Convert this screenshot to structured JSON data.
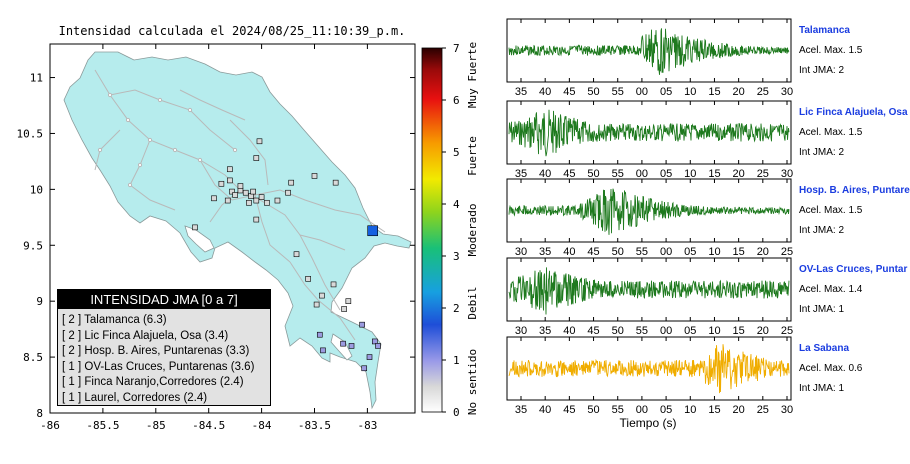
{
  "map": {
    "title": "Intensidad calculada el 2024/08/25_11:10:39_p.m.",
    "x_ticks": [
      "-86",
      "-85.5",
      "-85",
      "-84.5",
      "-84",
      "-83.5",
      "-83"
    ],
    "y_ticks": [
      "11",
      "10.5",
      "10",
      "9.5",
      "9",
      "8.5",
      "8"
    ],
    "xlim": [
      -86,
      -82.55
    ],
    "ylim": [
      8,
      11.3
    ],
    "land_color": "#b6eced",
    "epicenter": {
      "lon": -82.95,
      "lat": 9.63,
      "color": "#1560e0"
    },
    "stations": [
      {
        "lon": -84.28,
        "lat": 9.98
      },
      {
        "lon": -84.25,
        "lat": 9.95
      },
      {
        "lon": -84.2,
        "lat": 9.99
      },
      {
        "lon": -84.15,
        "lat": 9.97
      },
      {
        "lon": -84.1,
        "lat": 9.94
      },
      {
        "lon": -84.05,
        "lat": 9.9
      },
      {
        "lon": -84.0,
        "lat": 9.93
      },
      {
        "lon": -84.12,
        "lat": 9.88
      },
      {
        "lon": -84.32,
        "lat": 9.9
      },
      {
        "lon": -84.45,
        "lat": 9.92
      },
      {
        "lon": -84.38,
        "lat": 10.05
      },
      {
        "lon": -84.3,
        "lat": 10.08
      },
      {
        "lon": -84.2,
        "lat": 10.03
      },
      {
        "lon": -84.08,
        "lat": 9.98
      },
      {
        "lon": -83.95,
        "lat": 9.88
      },
      {
        "lon": -83.85,
        "lat": 9.9
      },
      {
        "lon": -83.75,
        "lat": 9.97
      },
      {
        "lon": -83.72,
        "lat": 10.06
      },
      {
        "lon": -84.02,
        "lat": 10.43
      },
      {
        "lon": -84.05,
        "lat": 10.28
      },
      {
        "lon": -84.3,
        "lat": 10.18
      },
      {
        "lon": -83.5,
        "lat": 10.12
      },
      {
        "lon": -83.3,
        "lat": 10.06
      },
      {
        "lon": -84.63,
        "lat": 9.66
      },
      {
        "lon": -84.05,
        "lat": 9.73
      },
      {
        "lon": -83.67,
        "lat": 9.42
      },
      {
        "lon": -83.56,
        "lat": 9.2
      },
      {
        "lon": -83.32,
        "lat": 9.15
      },
      {
        "lon": -83.43,
        "lat": 9.05
      },
      {
        "lon": -83.18,
        "lat": 9.0
      },
      {
        "lon": -83.05,
        "lat": 8.79
      },
      {
        "lon": -83.22,
        "lat": 8.93
      },
      {
        "lon": -83.48,
        "lat": 8.97
      },
      {
        "lon": -82.93,
        "lat": 8.64
      },
      {
        "lon": -82.9,
        "lat": 8.6
      },
      {
        "lon": -82.98,
        "lat": 8.5
      },
      {
        "lon": -83.03,
        "lat": 8.4
      },
      {
        "lon": -83.45,
        "lat": 8.7
      },
      {
        "lon": -83.23,
        "lat": 8.62
      },
      {
        "lon": -83.42,
        "lat": 8.56
      },
      {
        "lon": -83.15,
        "lat": 8.6
      }
    ]
  },
  "colorbar": {
    "ticks": [
      "0",
      "1",
      "2",
      "3",
      "4",
      "5",
      "6",
      "7"
    ],
    "labels": [
      "No sentido",
      "Debil",
      "Moderado",
      "Fuerte",
      "Muy Fuerte"
    ]
  },
  "legend": {
    "title": "INTENSIDAD JMA [0 a 7]",
    "rows": [
      "[ 2 ]  Talamanca (6.3)",
      "[ 2 ]  Lic Finca Alajuela, Osa (3.4)",
      "[ 2 ]  Hosp. B. Aires, Puntarenas (3.3)",
      "[ 1 ]  OV-Las Cruces, Puntarenas (3.6)",
      "[ 1 ]  Finca Naranjo,Corredores (2.4)",
      "[ 1 ]  Laurel, Corredores (2.4)"
    ]
  },
  "traces": [
    {
      "name": "Talamanca",
      "acel": "Acel. Max. 1.5",
      "int": "Int JMA: 2",
      "ticks": [
        "35",
        "40",
        "45",
        "50",
        "55",
        "00",
        "05",
        "10",
        "15",
        "20",
        "25",
        "30"
      ],
      "color": "#1f7a1f",
      "onset": 0.47,
      "peak": 0.53,
      "base": 0.18,
      "amp": 0.95,
      "seed": 3
    },
    {
      "name": "Lic Finca Alajuela, Osa",
      "acel": "Acel. Max. 1.5",
      "int": "Int JMA: 2",
      "ticks": [
        "35",
        "40",
        "45",
        "50",
        "55",
        "00",
        "05",
        "10",
        "15",
        "20",
        "25",
        "30"
      ],
      "color": "#1f7a1f",
      "onset": 0.02,
      "peak": 0.12,
      "base": 0.45,
      "amp": 0.95,
      "seed": 7
    },
    {
      "name": "Hosp. B. Aires, Puntare",
      "acel": "Acel. Max. 1.5",
      "int": "Int JMA: 2",
      "ticks": [
        "30",
        "35",
        "40",
        "45",
        "50",
        "55",
        "00",
        "05",
        "10",
        "15",
        "20",
        "25"
      ],
      "color": "#1f7a1f",
      "onset": 0.25,
      "peak": 0.36,
      "base": 0.18,
      "amp": 0.95,
      "seed": 11
    },
    {
      "name": "OV-Las Cruces, Puntar",
      "acel": "Acel. Max. 1.4",
      "int": "Int JMA: 1",
      "ticks": [
        "30",
        "35",
        "40",
        "45",
        "50",
        "55",
        "00",
        "05",
        "10",
        "15",
        "20",
        "25"
      ],
      "color": "#1f7a1f",
      "onset": 0.0,
      "peak": 0.12,
      "base": 0.45,
      "amp": 0.95,
      "seed": 19
    },
    {
      "name": "La Sabana",
      "acel": "Acel. Max. 0.6",
      "int": "Int JMA: 1",
      "ticks": [
        "35",
        "40",
        "45",
        "50",
        "55",
        "00",
        "05",
        "10",
        "15",
        "20",
        "25",
        "30"
      ],
      "color": "#f0ad00",
      "onset": 0.7,
      "peak": 0.755,
      "base": 0.3,
      "amp": 0.95,
      "seed": 23
    }
  ],
  "time_label": "Tiempo (s)"
}
